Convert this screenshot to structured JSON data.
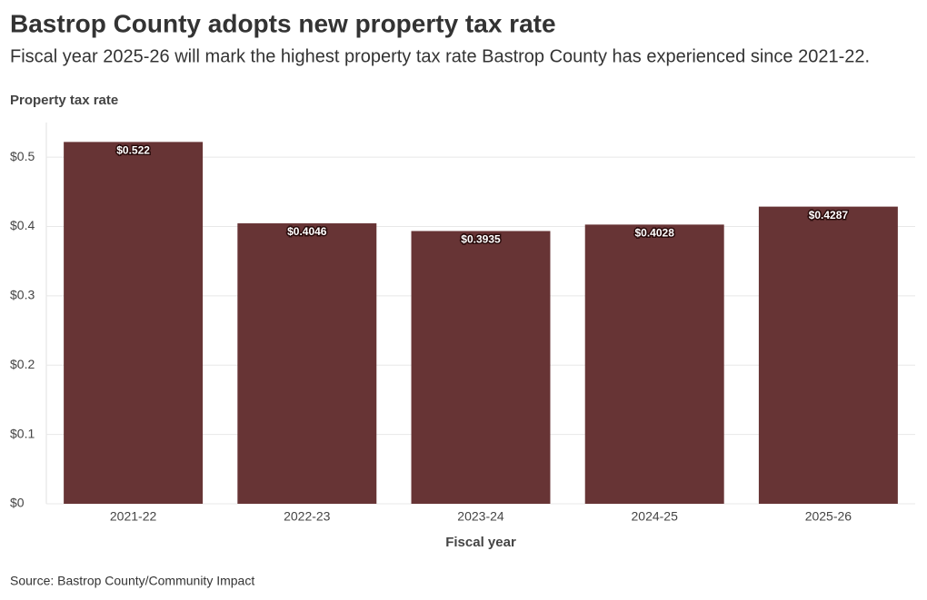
{
  "chart_data": {
    "type": "bar",
    "title": "Bastrop County adopts new property tax rate",
    "subtitle": "Fiscal year 2025-26 will mark the highest property tax rate Bastrop County has experienced since 2021-22.",
    "y_label": "Property tax rate",
    "x_label": "Fiscal year",
    "source": "Source: Bastrop County/Community Impact",
    "categories": [
      "2021-22",
      "2022-23",
      "2023-24",
      "2024-25",
      "2025-26"
    ],
    "values": [
      0.522,
      0.4046,
      0.3935,
      0.4028,
      0.4287
    ],
    "value_labels": [
      "$0.522",
      "$0.4046",
      "$0.3935",
      "$0.4028",
      "$0.4287"
    ],
    "color": "#673435",
    "ylim": [
      0,
      0.55
    ],
    "yticks": [
      {
        "value": 0,
        "label": "$0"
      },
      {
        "value": 0.1,
        "label": "$0.1"
      },
      {
        "value": 0.2,
        "label": "$0.2"
      },
      {
        "value": 0.3,
        "label": "$0.3"
      },
      {
        "value": 0.4,
        "label": "$0.4"
      },
      {
        "value": 0.5,
        "label": "$0.5"
      }
    ],
    "grid": true
  }
}
